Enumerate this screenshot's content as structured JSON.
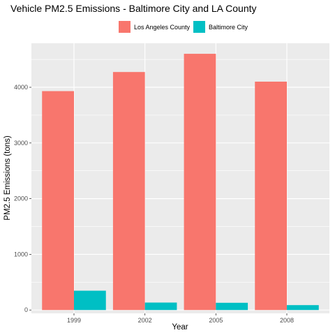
{
  "chart_data": {
    "type": "bar",
    "title": "Vehicle PM2.5 Emissions - Baltimore City and LA County",
    "xlabel": "Year",
    "ylabel": "PM2.5 Emissions (tons)",
    "categories": [
      "1999",
      "2002",
      "2005",
      "2008"
    ],
    "series": [
      {
        "name": "Los Angeles County",
        "values": [
          3931,
          4274,
          4601,
          4101
        ],
        "color": "#F8766D"
      },
      {
        "name": "Baltimore City",
        "values": [
          347,
          134,
          130,
          88
        ],
        "color": "#00BFC4"
      }
    ],
    "ylim": [
      -60,
      4790
    ],
    "yticks": [
      0,
      1000,
      2000,
      3000,
      4000
    ],
    "legend_position": "top",
    "grid": true,
    "panel_background": "#EBEBEB"
  }
}
